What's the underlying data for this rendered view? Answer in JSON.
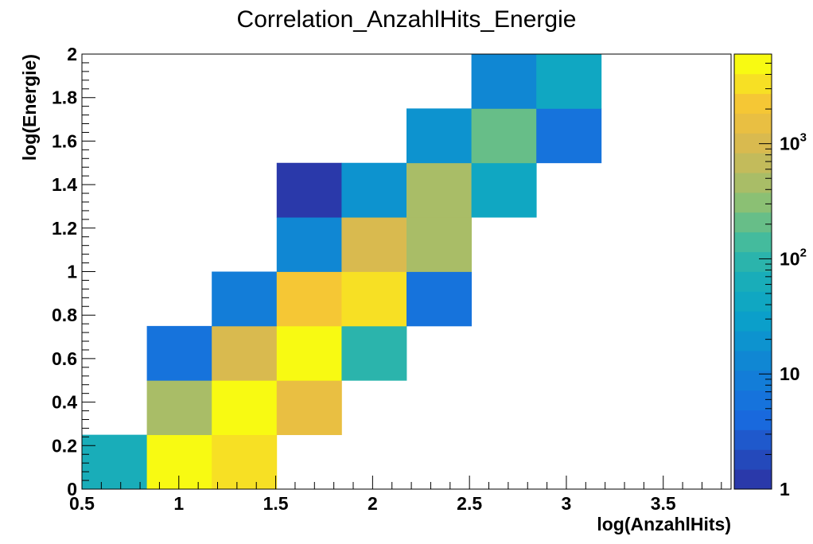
{
  "chart_data": {
    "type": "heatmap",
    "title": "Correlation_AnzahlHits_Energie",
    "xlabel": "log(AnzahlHits)",
    "ylabel": "log(Energie)",
    "xlim": [
      0.5,
      3.85
    ],
    "ylim": [
      0,
      2
    ],
    "x_ticks": [
      0.5,
      1,
      1.5,
      2,
      2.5,
      3,
      3.5
    ],
    "x_tick_labels": [
      "0.5",
      "1",
      "1.5",
      "2",
      "2.5",
      "3",
      "3.5"
    ],
    "y_ticks": [
      0,
      0.2,
      0.4,
      0.6,
      0.8,
      1,
      1.2,
      1.4,
      1.6,
      1.8,
      2
    ],
    "y_tick_labels": [
      "0",
      "0.2",
      "0.4",
      "0.6",
      "0.8",
      "1",
      "1.2",
      "1.4",
      "1.6",
      "1.8",
      "2"
    ],
    "x_bin_edges": [
      0.5,
      0.835,
      1.17,
      1.505,
      1.84,
      2.175,
      2.51,
      2.845,
      3.18,
      3.515,
      3.85
    ],
    "y_bin_edges": [
      0,
      0.25,
      0.5,
      0.75,
      1,
      1.25,
      1.5,
      1.75,
      2
    ],
    "z_scale": "log",
    "zlim": [
      1,
      6000
    ],
    "colorbar_ticks": [
      {
        "value": 1,
        "base": "1",
        "exp": ""
      },
      {
        "value": 10,
        "base": "10",
        "exp": ""
      },
      {
        "value": 100,
        "base": "10",
        "exp": "2"
      },
      {
        "value": 1000,
        "base": "10",
        "exp": "3"
      }
    ],
    "cells": [
      {
        "xi": 0,
        "yi": 0,
        "z": 70
      },
      {
        "xi": 1,
        "yi": 0,
        "z": 5500
      },
      {
        "xi": 2,
        "yi": 0,
        "z": 4000
      },
      {
        "xi": 1,
        "yi": 1,
        "z": 420
      },
      {
        "xi": 2,
        "yi": 1,
        "z": 5500
      },
      {
        "xi": 3,
        "yi": 1,
        "z": 1800
      },
      {
        "xi": 1,
        "yi": 2,
        "z": 5
      },
      {
        "xi": 2,
        "yi": 2,
        "z": 1000
      },
      {
        "xi": 3,
        "yi": 2,
        "z": 5500
      },
      {
        "xi": 4,
        "yi": 2,
        "z": 110
      },
      {
        "xi": 2,
        "yi": 3,
        "z": 8
      },
      {
        "xi": 3,
        "yi": 3,
        "z": 2000
      },
      {
        "xi": 4,
        "yi": 3,
        "z": 3300
      },
      {
        "xi": 5,
        "yi": 3,
        "z": 5
      },
      {
        "xi": 3,
        "yi": 4,
        "z": 12
      },
      {
        "xi": 4,
        "yi": 4,
        "z": 1000
      },
      {
        "xi": 5,
        "yi": 4,
        "z": 430
      },
      {
        "xi": 3,
        "yi": 5,
        "z": 1.3
      },
      {
        "xi": 4,
        "yi": 5,
        "z": 20
      },
      {
        "xi": 5,
        "yi": 5,
        "z": 430
      },
      {
        "xi": 6,
        "yi": 5,
        "z": 50
      },
      {
        "xi": 5,
        "yi": 6,
        "z": 22
      },
      {
        "xi": 6,
        "yi": 6,
        "z": 200
      },
      {
        "xi": 7,
        "yi": 6,
        "z": 5
      },
      {
        "xi": 6,
        "yi": 7,
        "z": 15
      },
      {
        "xi": 7,
        "yi": 7,
        "z": 40
      }
    ],
    "grid": false,
    "legend": "none"
  }
}
